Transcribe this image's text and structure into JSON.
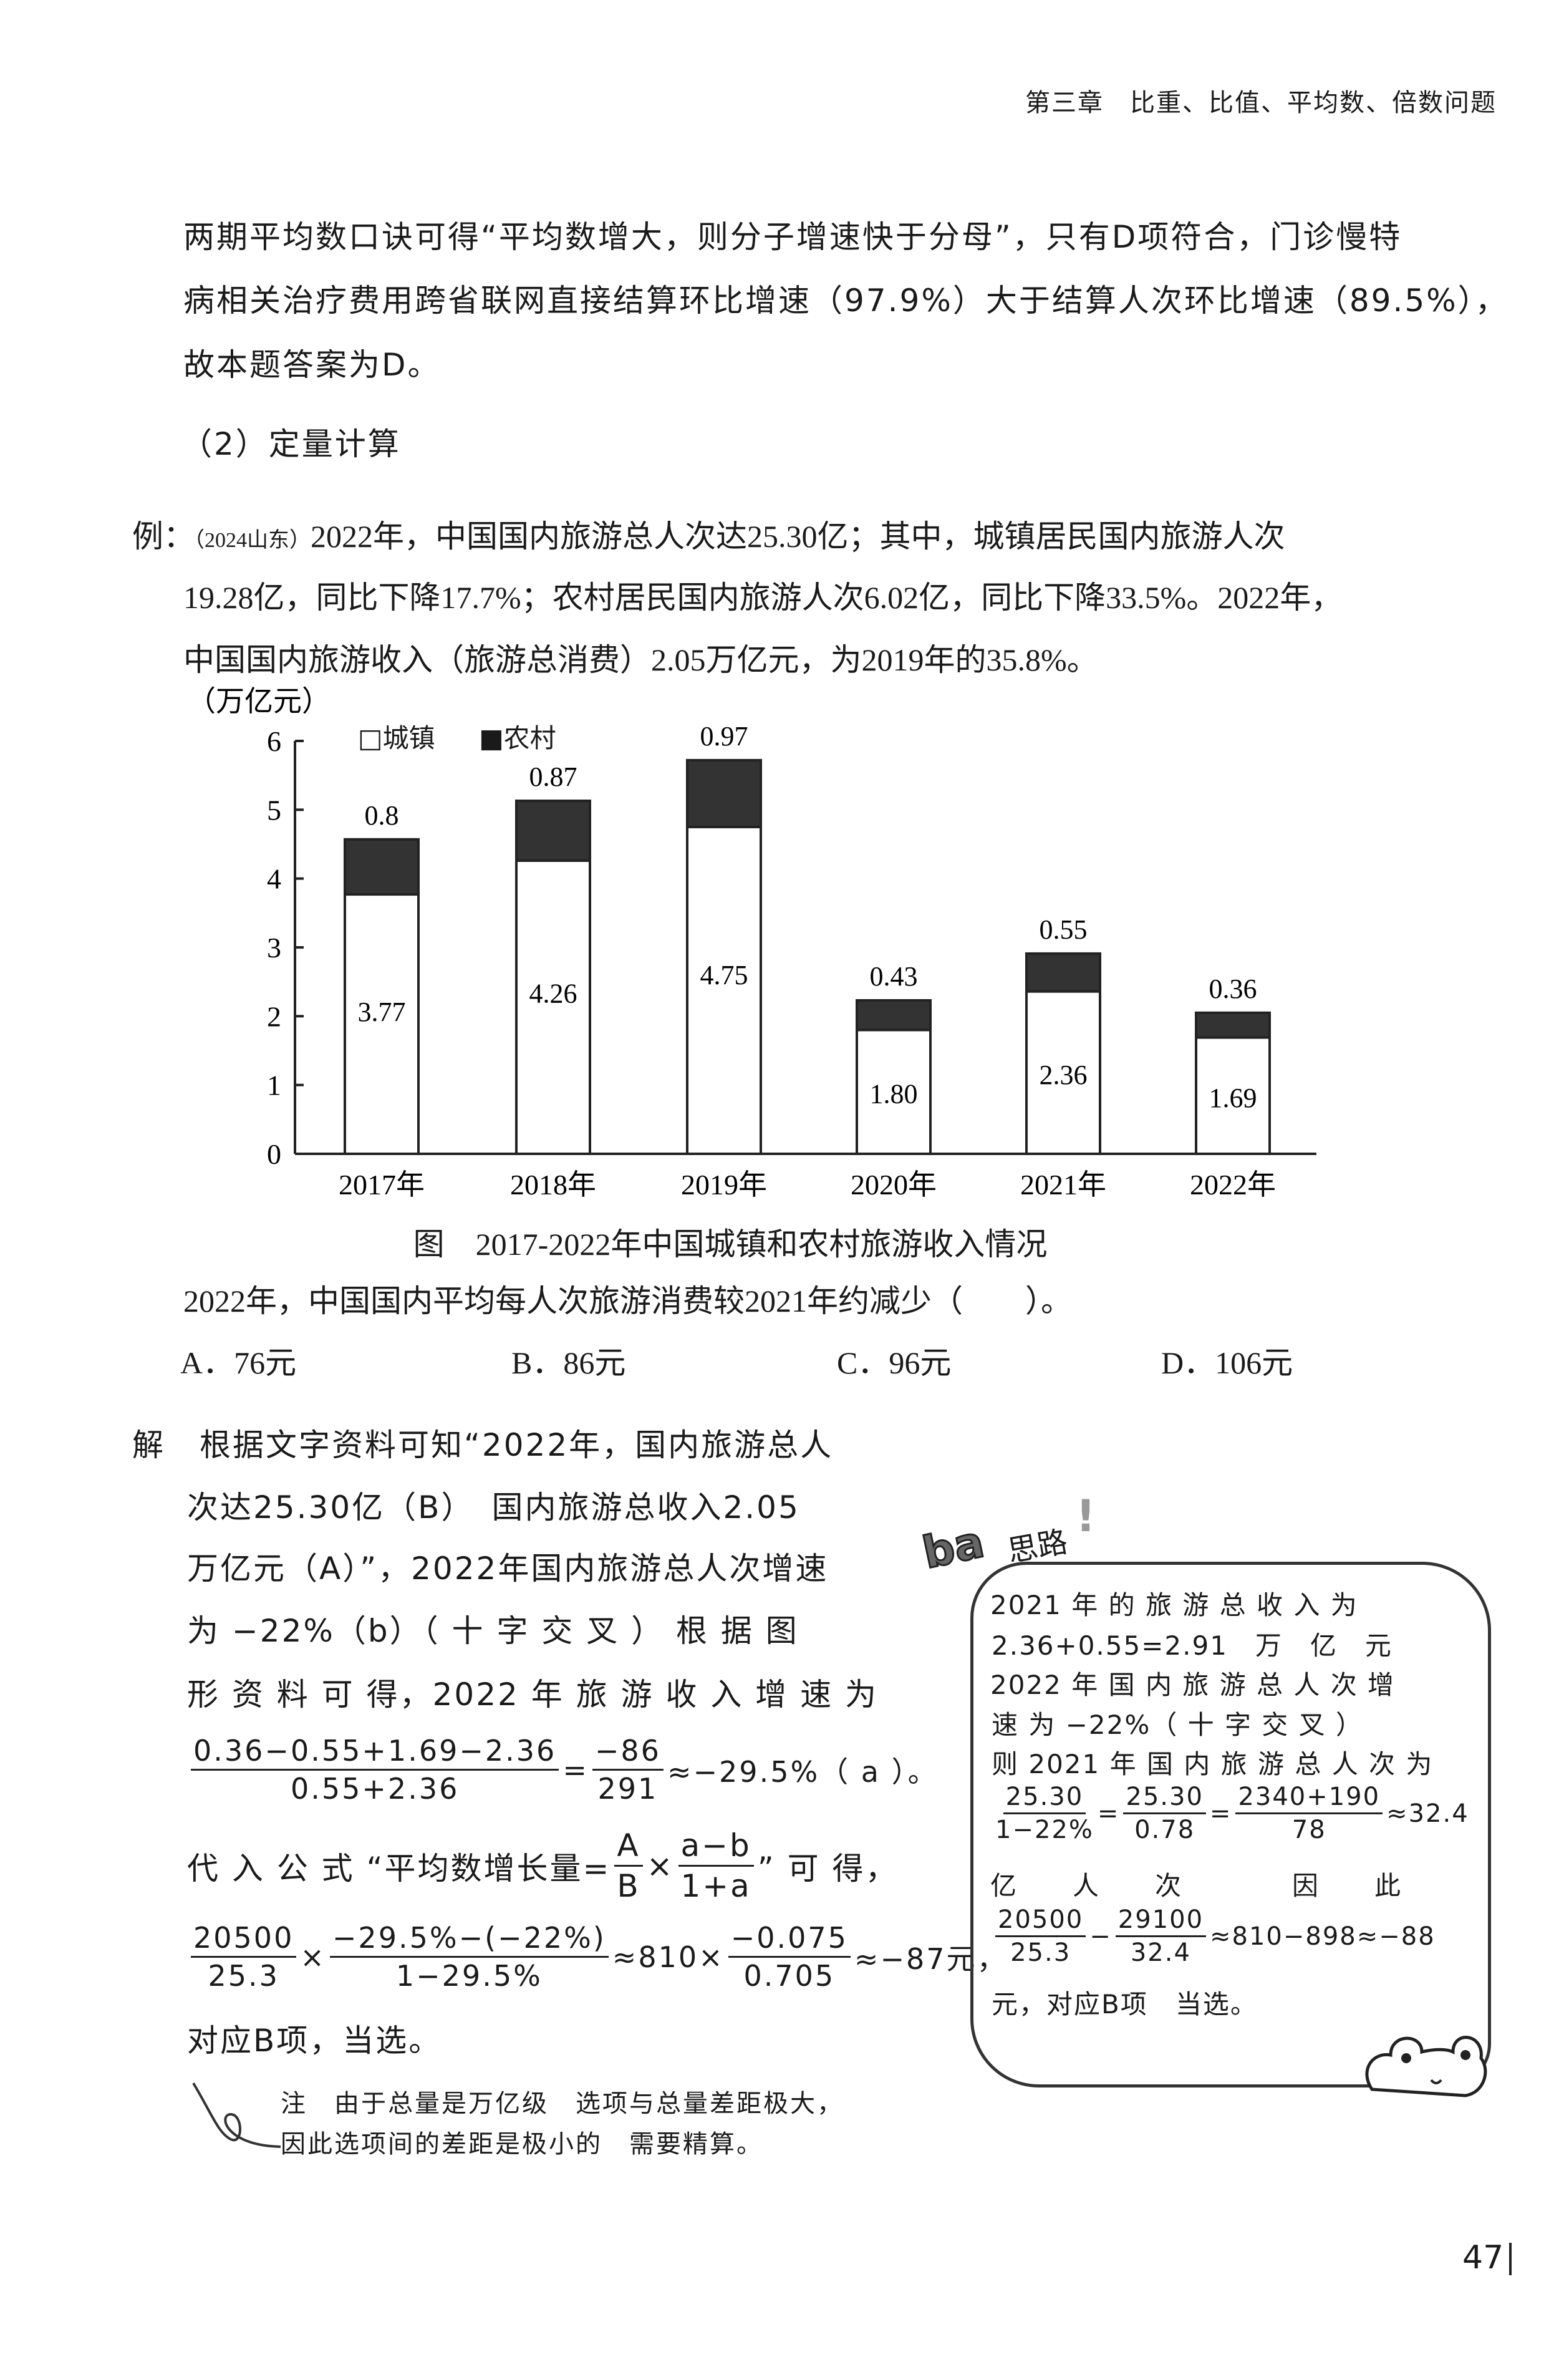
{
  "header": {
    "chapter": "第三章　比重、比值、平均数、倍数问题"
  },
  "intro": {
    "lines": [
      "两期平均数口诀可得“平均数增大，则分子增速快于分母”，只有D项符合，门诊慢特",
      "病相关治疗费用跨省联网直接结算环比增速（97.9%）大于结算人次环比增速（89.5%），",
      "故本题答案为D。"
    ]
  },
  "section": {
    "title": "（2）定量计算"
  },
  "example": {
    "label": "例：",
    "source": "（2024山东）",
    "lines": [
      "2022年，中国国内旅游总人次达25.30亿；其中，城镇居民国内旅游人次",
      "19.28亿，同比下降17.7%；农村居民国内旅游人次6.02亿，同比下降33.5%。2022年，",
      "中国国内旅游收入（旅游总消费）2.05万亿元，为2019年的35.8%。"
    ]
  },
  "chart_data": {
    "type": "bar",
    "stacked": true,
    "title": "图　2017-2022年中国城镇和农村旅游收入情况",
    "ylabel": "（万亿元）",
    "ylim": [
      0,
      6
    ],
    "yticks": [
      "0",
      "1",
      "2",
      "3",
      "4",
      "5",
      "6"
    ],
    "categories": [
      "2017年",
      "2018年",
      "2019年",
      "2020年",
      "2021年",
      "2022年"
    ],
    "legend_position": "top-left",
    "series": [
      {
        "name": "城镇",
        "values": [
          3.77,
          4.26,
          4.75,
          1.8,
          2.36,
          1.69
        ],
        "labels": [
          "3.77",
          "4.26",
          "4.75",
          "1.80",
          "2.36",
          "1.69"
        ],
        "color": "#ffffff"
      },
      {
        "name": "农村",
        "values": [
          0.8,
          0.87,
          0.97,
          0.43,
          0.55,
          0.36
        ],
        "labels": [
          "0.8",
          "0.87",
          "0.97",
          "0.43",
          "0.55",
          "0.36"
        ],
        "color": "#333333"
      }
    ],
    "legend": {
      "urban": "□城镇",
      "rural": "■农村"
    }
  },
  "question": {
    "text": "2022年，中国国内平均每人次旅游消费较2021年约减少（　　）。",
    "options": [
      "A．76元",
      "B．86元",
      "C．96元",
      "D．106元"
    ]
  },
  "solution": {
    "label": "解",
    "l1": "根据文字资料可知“2022年，国内旅游总人",
    "l2": "次达25.30亿（B）　国内旅游总收入2.05",
    "l3": "万亿元（A）”，2022年国内旅游总人次增速",
    "l4": "为 −22%（b）（ 十 字 交 叉 ）  根 据 图",
    "l5": "形 资 料 可 得，2022 年 旅 游 收 入 增 速 为",
    "f1_num": "0.36−0.55+1.69−2.36",
    "f1_den": "0.55+2.36",
    "f1_eq": "=",
    "f2_num": "−86",
    "f2_den": "291",
    "f1_res": "≈−29.5%（ a ）。",
    "l7a": "代 入 公 式 “平均数增长量=",
    "A": "A",
    "B": "B",
    "ab_num": "a−b",
    "ab_den": "1+a",
    "l7b": "” 可 得，",
    "g1_num": "20500",
    "g1_den": "25.3",
    "times": "×",
    "g2_num": "−29.5%−(−22%)",
    "g2_den": "1−29.5%",
    "g_mid": "≈810×",
    "g3_num": "−0.075",
    "g3_den": "0.705",
    "g_res": "≈−87元，",
    "l9": "对应B项，当选。"
  },
  "note": {
    "l1": "注　由于总量是万亿级　选项与总量差距极大，",
    "l2": "因此选项间的差距是极小的　需要精算。"
  },
  "tip": {
    "badge": "ba",
    "title": "思路",
    "l1": "2021 年 的 旅 游 总 收 入 为",
    "l2": "2.36+0.55=2.91　万　亿　元",
    "l3": "2022 年 国 内 旅 游 总 人 次 增",
    "l4": "速 为 −22%（ 十 字 交 叉 ）",
    "l5": "则 2021 年 国 内 旅 游 总 人 次 为",
    "h1n": "25.30",
    "h1d": "1−22%",
    "h2n": "25.30",
    "h2d": "0.78",
    "h3n": "2340+190",
    "h3d": "78",
    "eq": "=",
    "hres": "≈32.4",
    "l7": "亿　　人　　次　　　　因　　此",
    "k1n": "20500",
    "k1d": "25.3",
    "minus": "−",
    "k2n": "29100",
    "k2d": "32.4",
    "kres": "≈810−898≈−88",
    "l9": "元，对应B项　当选。"
  },
  "page_number": "47"
}
